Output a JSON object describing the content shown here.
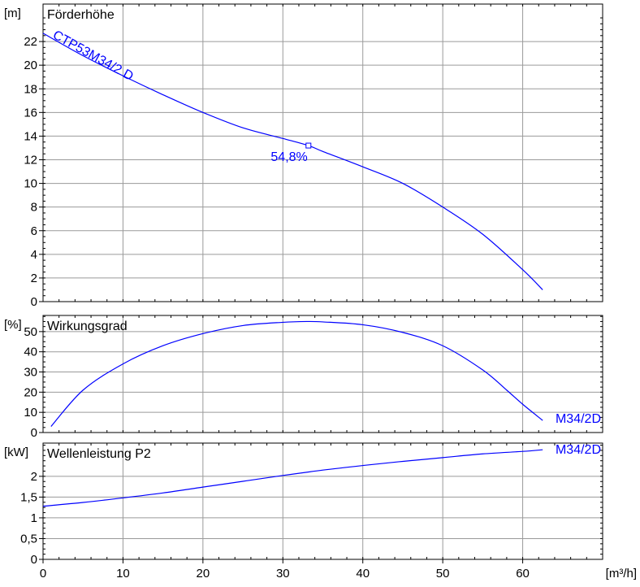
{
  "chart_data": [
    {
      "type": "line",
      "title": "Förderhöhe",
      "unit_label": "[m]",
      "ylim": [
        0,
        24
      ],
      "y_ticks": [
        0,
        2,
        4,
        6,
        8,
        10,
        12,
        14,
        16,
        18,
        20,
        22
      ],
      "grid": true,
      "series": [
        {
          "name": "CTP53M34/2 D",
          "x": [
            0,
            5,
            10,
            15,
            20,
            25,
            30,
            33.2,
            35,
            40,
            45,
            50,
            55,
            60,
            62.5
          ],
          "y": [
            22.7,
            20.8,
            19.1,
            17.5,
            16.0,
            14.7,
            13.8,
            13.2,
            12.7,
            11.4,
            10.0,
            8.0,
            5.7,
            2.7,
            1.0
          ]
        }
      ],
      "operating_point": {
        "x": 33.2,
        "y": 13.2,
        "label": "54,8%"
      }
    },
    {
      "type": "line",
      "title": "Wirkungsgrad",
      "unit_label": "[%]",
      "ylim": [
        0,
        58
      ],
      "y_ticks": [
        0,
        10,
        20,
        30,
        40,
        50
      ],
      "grid": true,
      "series": [
        {
          "name": "M34/2D",
          "x": [
            1,
            5,
            10,
            15,
            20,
            25,
            30,
            33,
            35,
            40,
            45,
            50,
            55,
            58,
            60,
            62.5
          ],
          "y": [
            3,
            21,
            34,
            43,
            49,
            53,
            54.6,
            55,
            54.8,
            53.4,
            49.6,
            43,
            31,
            21,
            14,
            6
          ]
        }
      ]
    },
    {
      "type": "line",
      "title": "Wellenleistung P2",
      "unit_label": "[kW]",
      "ylim": [
        0,
        2.8
      ],
      "y_ticks": [
        0,
        0.5,
        1,
        1.5,
        2
      ],
      "y_tick_labels": [
        "0",
        "0,5",
        "1",
        "1,5",
        "2"
      ],
      "grid": true,
      "series": [
        {
          "name": "M34/2D",
          "x": [
            0,
            5,
            10,
            15,
            20,
            25,
            30,
            35,
            40,
            45,
            50,
            55,
            60,
            62.5
          ],
          "y": [
            1.28,
            1.37,
            1.48,
            1.6,
            1.74,
            1.88,
            2.02,
            2.15,
            2.26,
            2.36,
            2.45,
            2.54,
            2.6,
            2.64
          ]
        }
      ]
    }
  ],
  "x_axis": {
    "xlim": [
      0,
      70
    ],
    "ticks": [
      0,
      10,
      20,
      30,
      40,
      50,
      60
    ],
    "unit_label": "[m³/h]"
  },
  "colors": {
    "curve": "#0000ff",
    "curve_label": "#0000ff",
    "grid": "#9a9a9a",
    "frame": "#000000",
    "text": "#000000"
  }
}
